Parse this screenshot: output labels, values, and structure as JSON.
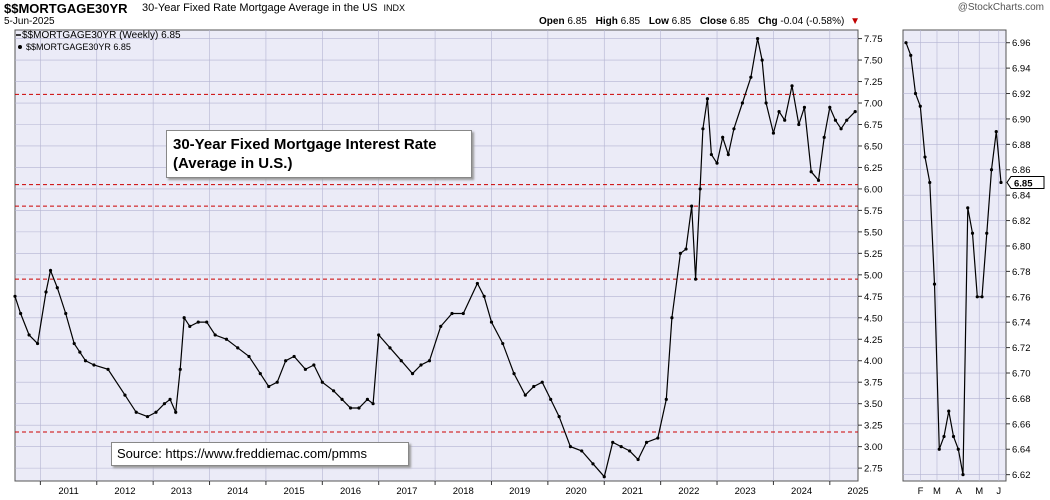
{
  "header": {
    "symbol": "$$MORTGAGE30YR",
    "description": "30-Year Fixed Rate Mortgage Average in the US",
    "exchange": "INDX",
    "date": "5-Jun-2025",
    "brand": "@StockCharts.com",
    "open_label": "Open",
    "open_value": "6.85",
    "high_label": "High",
    "high_value": "6.85",
    "low_label": "Low",
    "low_value": "6.85",
    "close_label": "Close",
    "close_value": "6.85",
    "chg_label": "Chg",
    "chg_value": "-0.04 (-0.58%)",
    "chg_arrow": "▼"
  },
  "legend": {
    "main": "$$MORTGAGE30YR (Weekly) 6.85",
    "right_panel": "$$MORTGAGE30YR 6.85"
  },
  "annotation": {
    "line1": "30-Year Fixed Mortgage Interest Rate",
    "line2": "(Average in U.S.)"
  },
  "source": "Source: https://www.freddiemac.com/pmms",
  "last_value_label": "6.85",
  "colors": {
    "plot_bg": "#ebebf7",
    "grid": "#b4b4d2",
    "line": "#000000",
    "reference_line": "#cc0000",
    "down": "#c00000"
  },
  "chart_data": [
    {
      "type": "line",
      "title": "$$MORTGAGE30YR (Weekly) 6.85",
      "x_tick_labels": [
        "2011",
        "2012",
        "2013",
        "2014",
        "2015",
        "2016",
        "2017",
        "2018",
        "2019",
        "2020",
        "2021",
        "2022",
        "2023",
        "2024",
        "2025"
      ],
      "y_tick_labels": [
        "2.75",
        "3.00",
        "3.25",
        "3.50",
        "3.75",
        "4.00",
        "4.25",
        "4.50",
        "4.75",
        "5.00",
        "5.25",
        "5.50",
        "5.75",
        "6.00",
        "6.25",
        "6.50",
        "6.75",
        "7.00",
        "7.25",
        "7.50",
        "7.75"
      ],
      "ylim": [
        2.6,
        7.85
      ],
      "xlim": [
        2010.55,
        2025.5
      ],
      "grid": true,
      "axis_position": "right",
      "reference_lines": [
        7.1,
        6.05,
        5.8,
        4.95,
        3.17
      ],
      "x": [
        2010.55,
        2010.65,
        2010.8,
        2010.95,
        2011.1,
        2011.18,
        2011.3,
        2011.45,
        2011.6,
        2011.7,
        2011.8,
        2011.95,
        2012.2,
        2012.5,
        2012.7,
        2012.9,
        2013.05,
        2013.2,
        2013.3,
        2013.4,
        2013.48,
        2013.55,
        2013.65,
        2013.8,
        2013.95,
        2014.1,
        2014.3,
        2014.5,
        2014.7,
        2014.9,
        2015.05,
        2015.2,
        2015.35,
        2015.5,
        2015.7,
        2015.85,
        2016.0,
        2016.2,
        2016.35,
        2016.5,
        2016.65,
        2016.8,
        2016.9,
        2017.0,
        2017.2,
        2017.4,
        2017.6,
        2017.75,
        2017.9,
        2018.1,
        2018.3,
        2018.5,
        2018.75,
        2018.87,
        2019.0,
        2019.2,
        2019.4,
        2019.6,
        2019.75,
        2019.9,
        2020.05,
        2020.2,
        2020.4,
        2020.6,
        2020.8,
        2021.0,
        2021.15,
        2021.3,
        2021.45,
        2021.6,
        2021.75,
        2021.95,
        2022.1,
        2022.2,
        2022.35,
        2022.45,
        2022.55,
        2022.62,
        2022.7,
        2022.75,
        2022.83,
        2022.9,
        2023.0,
        2023.1,
        2023.2,
        2023.3,
        2023.45,
        2023.6,
        2023.72,
        2023.8,
        2023.87,
        2024.0,
        2024.1,
        2024.2,
        2024.33,
        2024.45,
        2024.55,
        2024.67,
        2024.8,
        2024.9,
        2025.0,
        2025.1,
        2025.2,
        2025.3,
        2025.45
      ],
      "values": [
        4.75,
        4.55,
        4.3,
        4.2,
        4.8,
        5.05,
        4.85,
        4.55,
        4.2,
        4.1,
        4.0,
        3.95,
        3.9,
        3.6,
        3.4,
        3.35,
        3.4,
        3.5,
        3.55,
        3.4,
        3.9,
        4.5,
        4.4,
        4.45,
        4.45,
        4.3,
        4.25,
        4.15,
        4.05,
        3.85,
        3.7,
        3.75,
        4.0,
        4.05,
        3.9,
        3.95,
        3.75,
        3.65,
        3.55,
        3.45,
        3.45,
        3.55,
        3.5,
        4.3,
        4.15,
        4.0,
        3.85,
        3.95,
        4.0,
        4.4,
        4.55,
        4.55,
        4.9,
        4.75,
        4.45,
        4.2,
        3.85,
        3.6,
        3.7,
        3.75,
        3.55,
        3.35,
        3.0,
        2.95,
        2.8,
        2.65,
        3.05,
        3.0,
        2.95,
        2.85,
        3.05,
        3.1,
        3.55,
        4.5,
        5.25,
        5.3,
        5.8,
        4.95,
        6.0,
        6.7,
        7.05,
        6.4,
        6.3,
        6.6,
        6.4,
        6.7,
        7.0,
        7.3,
        7.75,
        7.5,
        7.0,
        6.65,
        6.9,
        6.8,
        7.2,
        6.75,
        6.95,
        6.2,
        6.1,
        6.6,
        6.95,
        6.8,
        6.7,
        6.8,
        6.9
      ]
    },
    {
      "type": "line",
      "title": "$$MORTGAGE30YR 6.85",
      "x_tick_labels": [
        "F",
        "M",
        "A",
        "M",
        "J"
      ],
      "y_tick_labels": [
        "6.62",
        "6.64",
        "6.66",
        "6.68",
        "6.70",
        "6.72",
        "6.74",
        "6.76",
        "6.78",
        "6.80",
        "6.82",
        "6.84",
        "6.86",
        "6.88",
        "6.90",
        "6.92",
        "6.94",
        "6.96"
      ],
      "ylim": [
        6.615,
        6.97
      ],
      "grid": true,
      "axis_position": "right",
      "values": [
        6.96,
        6.95,
        6.92,
        6.91,
        6.87,
        6.85,
        6.77,
        6.64,
        6.65,
        6.67,
        6.65,
        6.64,
        6.62,
        6.83,
        6.81,
        6.76,
        6.76,
        6.81,
        6.86,
        6.89,
        6.85
      ]
    }
  ]
}
